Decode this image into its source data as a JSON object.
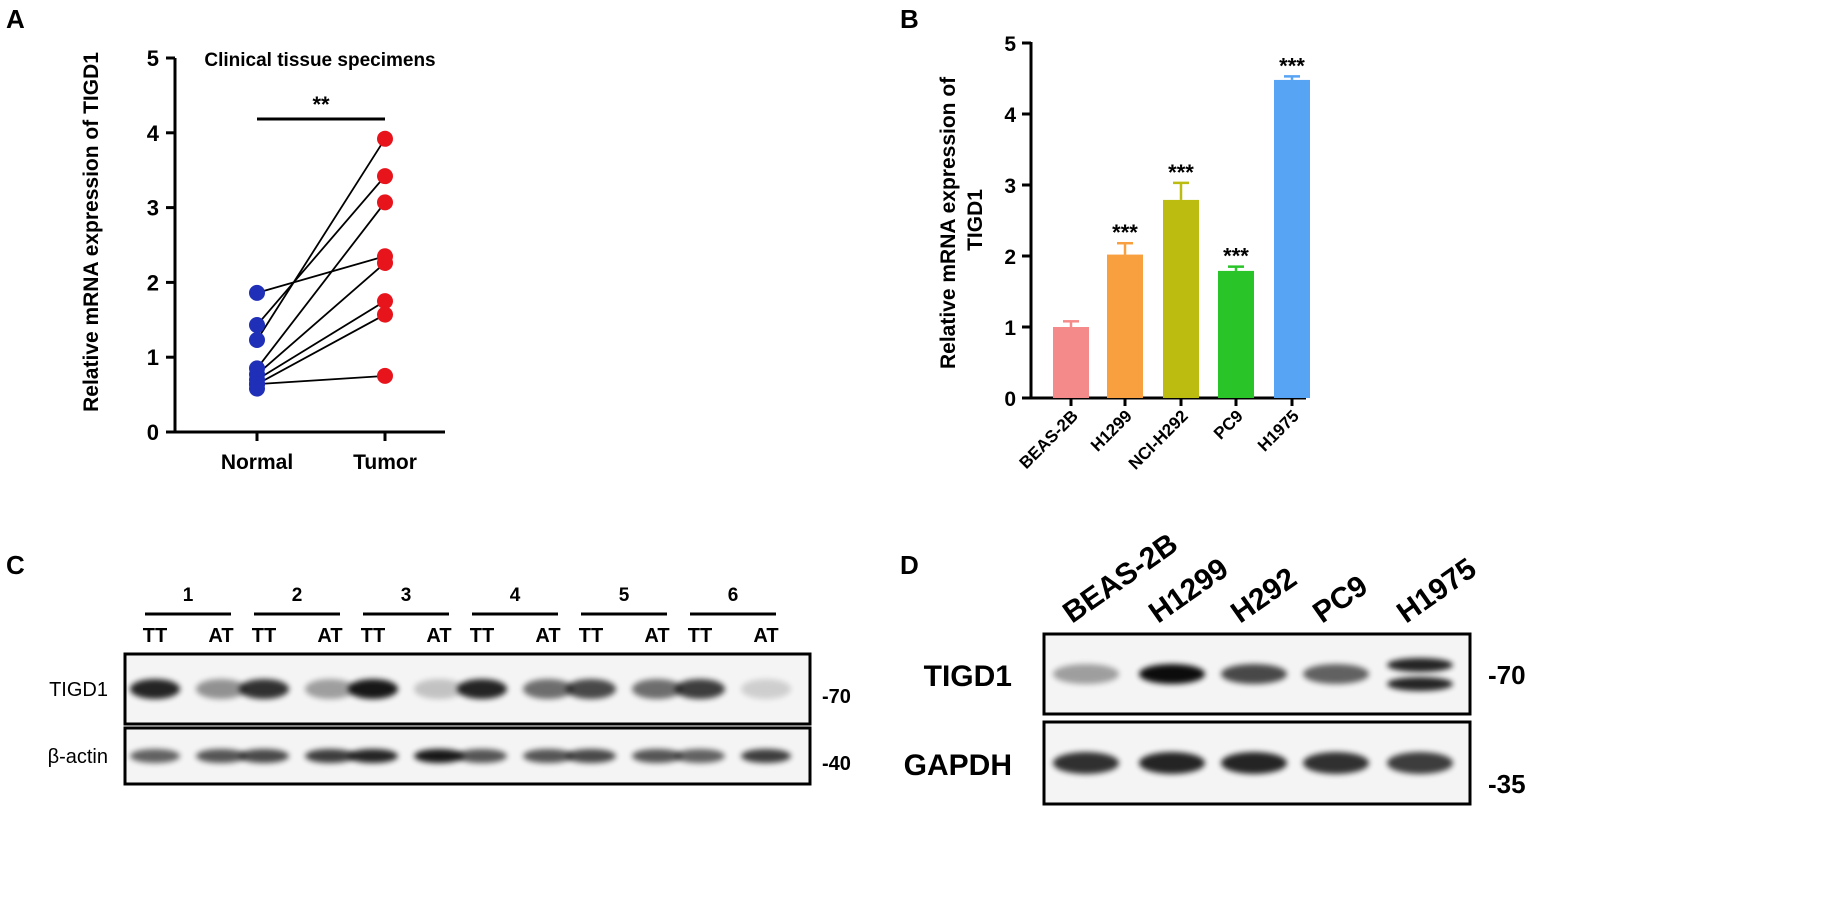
{
  "panel_letters": {
    "a": "A",
    "b": "B",
    "c": "C",
    "d": "D"
  },
  "colors": {
    "normal_point": "#1f2fb8",
    "tumor_point": "#e8141c",
    "bar_beas2b": "#f58a8a",
    "bar_h1299": "#f8a040",
    "bar_nci_h292": "#bcbc10",
    "bar_pc9": "#28c428",
    "bar_h1975": "#58a4f4"
  },
  "chart_data": [
    {
      "type": "scatter",
      "subtype": "paired",
      "title": "Clinical tissue specimens",
      "ylabel": "Relative mRNA expression of TIGD1",
      "ylim": [
        0,
        5
      ],
      "yticks": [
        "0",
        "1",
        "2",
        "3",
        "4",
        "5"
      ],
      "categories": [
        "Normal",
        "Tumor"
      ],
      "pairs": [
        {
          "normal": 1.86,
          "tumor": 2.35
        },
        {
          "normal": 1.43,
          "tumor": 3.42
        },
        {
          "normal": 1.23,
          "tumor": 3.92
        },
        {
          "normal": 0.85,
          "tumor": 3.07
        },
        {
          "normal": 0.77,
          "tumor": 2.26
        },
        {
          "normal": 0.7,
          "tumor": 1.75
        },
        {
          "normal": 0.64,
          "tumor": 1.57
        },
        {
          "normal": 0.64,
          "tumor": 0.75
        },
        {
          "normal": 0.58,
          "tumor": null
        }
      ],
      "significance": "**"
    },
    {
      "type": "bar",
      "ylabel": "Relative mRNA expression of TIGD1",
      "ylim": [
        0,
        5
      ],
      "yticks": [
        "0",
        "1",
        "2",
        "3",
        "4",
        "5"
      ],
      "categories": [
        "BEAS-2B",
        "H1299",
        "NCI-H292",
        "PC9",
        "H1975"
      ],
      "values": [
        1.0,
        2.02,
        2.79,
        1.79,
        4.48
      ],
      "errors": [
        0.08,
        0.16,
        0.24,
        0.06,
        0.05
      ],
      "annotations": [
        "",
        "***",
        "***",
        "***",
        "***"
      ]
    }
  ],
  "blot_c": {
    "samples": [
      "1",
      "2",
      "3",
      "4",
      "5",
      "6"
    ],
    "lanes": [
      "TT",
      "AT",
      "TT",
      "AT",
      "TT",
      "AT",
      "TT",
      "AT",
      "TT",
      "AT",
      "TT",
      "AT"
    ],
    "rows": [
      {
        "label": "TIGD1",
        "marker": "-70",
        "intensities": [
          0.85,
          0.4,
          0.8,
          0.35,
          0.9,
          0.2,
          0.85,
          0.55,
          0.7,
          0.55,
          0.75,
          0.15
        ]
      },
      {
        "label": "β-actin",
        "marker": "-40",
        "intensities": [
          0.6,
          0.65,
          0.7,
          0.75,
          0.85,
          0.9,
          0.65,
          0.65,
          0.7,
          0.65,
          0.6,
          0.75
        ]
      }
    ]
  },
  "blot_d": {
    "lanes": [
      "BEAS-2B",
      "H1299",
      "H292",
      "PC9",
      "H1975"
    ],
    "rows": [
      {
        "label": "TIGD1",
        "marker": "-70",
        "intensities": [
          0.35,
          0.95,
          0.7,
          0.6,
          0.85
        ],
        "double_band": [
          false,
          false,
          false,
          false,
          true
        ]
      },
      {
        "label": "GAPDH",
        "marker": "-35",
        "intensities": [
          0.8,
          0.85,
          0.85,
          0.8,
          0.75
        ],
        "double_band": [
          false,
          false,
          false,
          false,
          false
        ]
      }
    ]
  }
}
